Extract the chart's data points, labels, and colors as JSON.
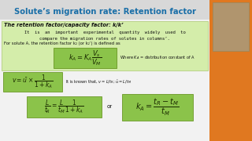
{
  "title": "Solute’s migration rate: Retention factor",
  "title_color": "#1a6fa8",
  "bg_color": "#c8c8c8",
  "green_area_color": "#d4edaa",
  "green_box_color": "#8bc34a",
  "subtitle": "The retention factor/capacity factor: k/k’",
  "body_line1": "It  is  an  important  experimental  quantity  widely  used  to",
  "body_line2": "compare the migration rates of solutes in columns’.",
  "body_line3": "For solute A, the retention factor k₂ (or k₂’) is defined as",
  "eq1": "$k_A = K_A \\dfrac{V_s}{V_M}$",
  "eq1_label": "Where $K_A$ = distribution constant of A",
  "eq2": "$v = \\bar{u} \\times \\dfrac{1}{1+k_A}$",
  "eq2_label": "It is known that, $v = L/t_R$; $\\bar{u} = L/t_M$",
  "eq3": "$\\dfrac{L}{t_R} = \\dfrac{L}{t_M} \\dfrac{1}{1+k_A}$",
  "eq3_label": "or",
  "eq4": "$k_A = \\dfrac{t_R - t_M}{t_M}$",
  "orange_color": "#e07820",
  "white_area_color": "#f2f2f2",
  "person_color": "#b0956e"
}
